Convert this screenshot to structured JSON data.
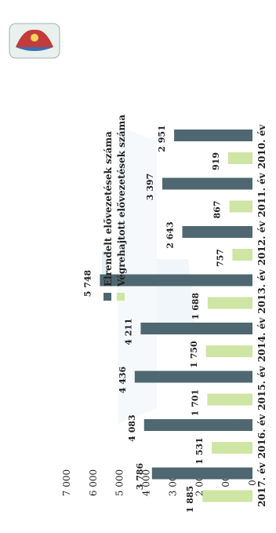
{
  "chart_data": {
    "type": "bar",
    "orientation": "rotated-90-ccw",
    "categories": [
      "2010. év",
      "2011. év",
      "2012. év",
      "2013. év",
      "2014. év",
      "2015. év",
      "2016. év",
      "2017. év"
    ],
    "series": [
      {
        "name": "Elrendelt elővezetések száma",
        "color": "#4f6770",
        "values": [
          2951,
          3397,
          2643,
          5748,
          4211,
          4436,
          4083,
          3786
        ],
        "labels": [
          "2 951",
          "3 397",
          "2 643",
          "5 748",
          "4 211",
          "4 436",
          "4 083",
          "3 786"
        ]
      },
      {
        "name": "Végrehajtott elővezetések száma",
        "color": "#cfe5a3",
        "values": [
          919,
          867,
          757,
          1688,
          1750,
          1701,
          1531,
          1885
        ],
        "labels": [
          "919",
          "867",
          "757",
          "1 688",
          "1 750",
          "1 701",
          "1 531",
          "1 885"
        ]
      }
    ],
    "yticks": [
      0,
      1000,
      2000,
      3000,
      4000,
      5000,
      6000,
      7000
    ],
    "ytick_labels": [
      "0",
      "1 000",
      "2 000",
      "3 000",
      "4 000",
      "5 000",
      "6 000",
      "7 000"
    ],
    "ylim": [
      0,
      7000
    ],
    "grid": false,
    "legend_position": "top"
  }
}
